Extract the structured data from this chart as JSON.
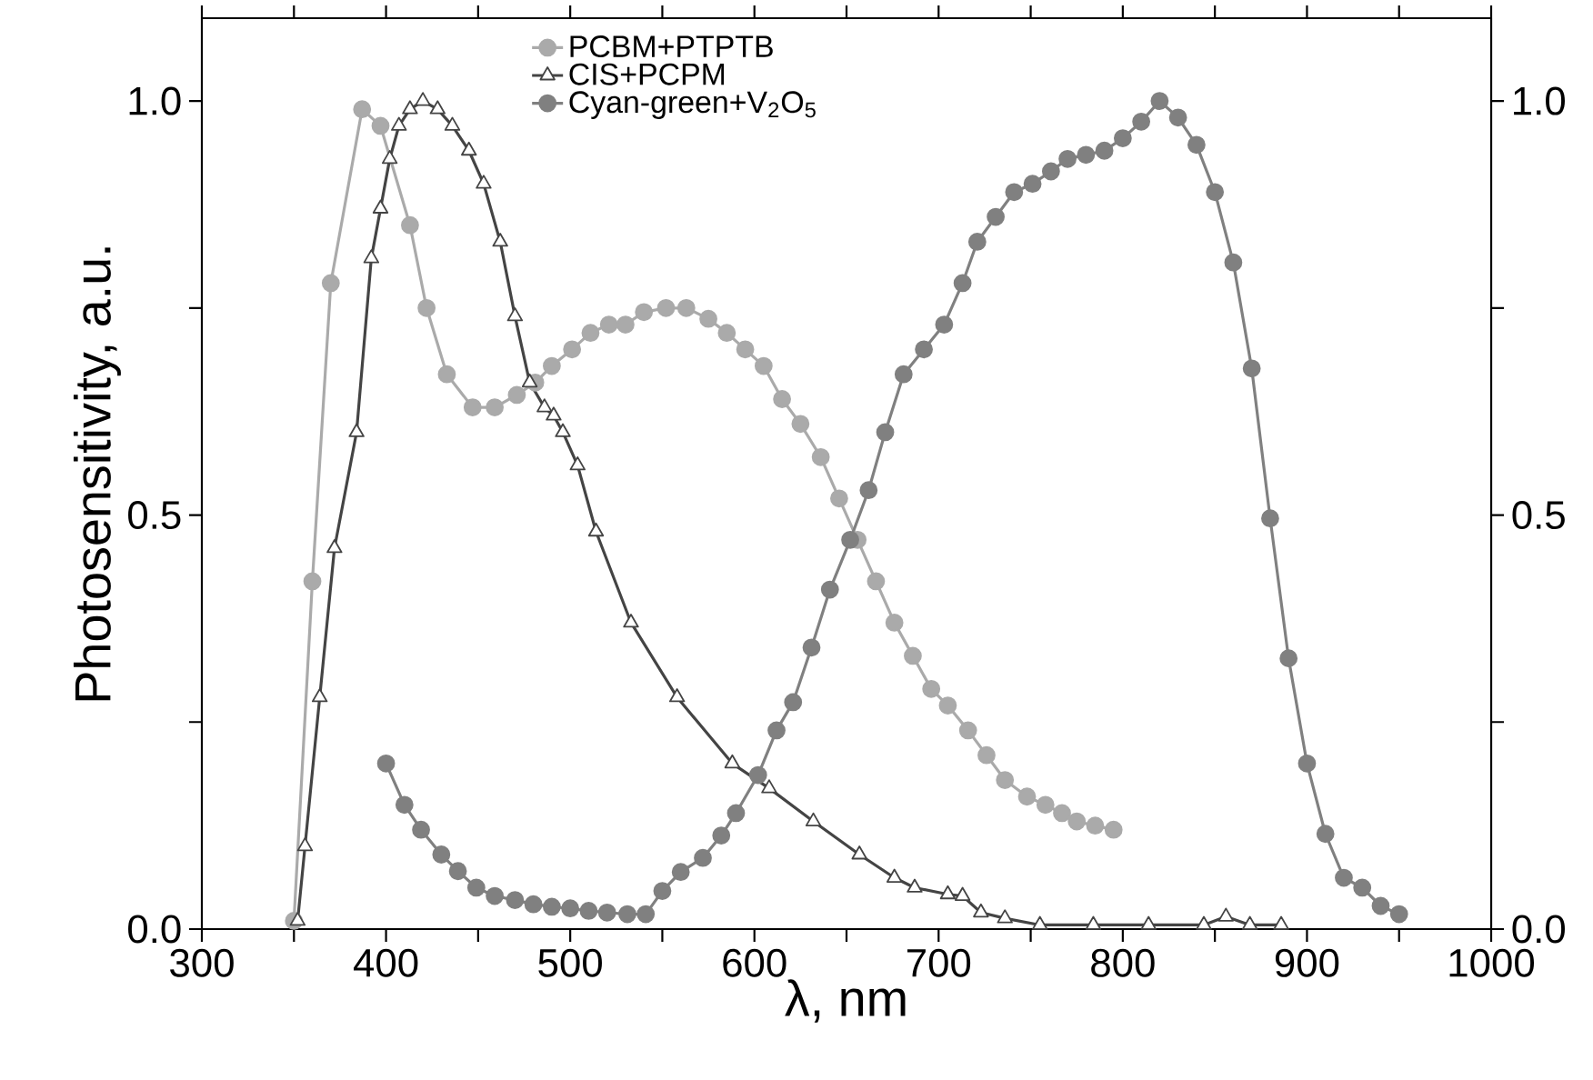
{
  "chart_data": {
    "type": "line",
    "xlabel": "λ, nm",
    "ylabel": "Photosensitivity, a.u.",
    "xlim": [
      300,
      1000
    ],
    "xticks": [
      300,
      {
        "value": 350,
        "label": null
      },
      400,
      {
        "value": 450,
        "label": null
      },
      500,
      {
        "value": 550,
        "label": null
      },
      600,
      {
        "value": 650,
        "label": null
      },
      700,
      {
        "value": 750,
        "label": null
      },
      800,
      {
        "value": 850,
        "label": null
      },
      900,
      {
        "value": 950,
        "label": null
      },
      1000
    ],
    "ylim": [
      0,
      1.1
    ],
    "yticks": [
      {
        "value": 0,
        "label": "0.0"
      },
      {
        "value": 0.25,
        "label": null
      },
      {
        "value": 0.5,
        "label": "0.5"
      },
      {
        "value": 0.75,
        "label": null
      },
      {
        "value": 1,
        "label": "1.0"
      }
    ],
    "y2lim": [
      0,
      1.1
    ],
    "y2ticks": [
      {
        "value": 0,
        "label": "0.0"
      },
      {
        "value": 0.25,
        "label": null
      },
      {
        "value": 0.5,
        "label": "0.5"
      },
      {
        "value": 0.75,
        "label": null
      },
      {
        "value": 1,
        "label": "1.0"
      }
    ],
    "legend": "top",
    "grid": false,
    "series": [
      {
        "name": "PCBM+PTPTB",
        "color": "#aaaaaa",
        "marker": "circle",
        "x": [
          350,
          360,
          370,
          387,
          397,
          413,
          422,
          433,
          447,
          459,
          471,
          481,
          490,
          501,
          511,
          521,
          530,
          540,
          552,
          563,
          575,
          585,
          595,
          605,
          615,
          625,
          636,
          646,
          656,
          666,
          676,
          686,
          696,
          705,
          716,
          726,
          736,
          748,
          758,
          767,
          775,
          785,
          795
        ],
        "values": [
          0.01,
          0.42,
          0.78,
          0.99,
          0.97,
          0.85,
          0.75,
          0.67,
          0.63,
          0.63,
          0.645,
          0.66,
          0.68,
          0.7,
          0.72,
          0.73,
          0.73,
          0.745,
          0.75,
          0.75,
          0.737,
          0.72,
          0.7,
          0.68,
          0.64,
          0.61,
          0.57,
          0.52,
          0.47,
          0.42,
          0.37,
          0.33,
          0.29,
          0.27,
          0.24,
          0.21,
          0.18,
          0.16,
          0.15,
          0.14,
          0.13,
          0.125,
          0.12
        ]
      },
      {
        "name": "CIS+PCPM",
        "color": "#444444",
        "marker": "triangle",
        "x": [
          352,
          356,
          364,
          372,
          384,
          392,
          397,
          402,
          407,
          413,
          420,
          428,
          436,
          445,
          453,
          462,
          470,
          478,
          486,
          491,
          496,
          504,
          514,
          533,
          558,
          588,
          608,
          632,
          657,
          676,
          687,
          705,
          713,
          723,
          736,
          755,
          784,
          814,
          844,
          856,
          869,
          886
        ],
        "values": [
          0.01,
          0.1,
          0.28,
          0.46,
          0.6,
          0.81,
          0.87,
          0.93,
          0.97,
          0.99,
          1.0,
          0.99,
          0.97,
          0.94,
          0.9,
          0.83,
          0.74,
          0.66,
          0.63,
          0.62,
          0.6,
          0.56,
          0.48,
          0.37,
          0.28,
          0.2,
          0.17,
          0.13,
          0.09,
          0.062,
          0.05,
          0.042,
          0.04,
          0.02,
          0.013,
          0.005,
          0.005,
          0.005,
          0.005,
          0.015,
          0.005,
          0.005
        ]
      },
      {
        "name": "Cyan-green+V$_{2}$O$_{5}$",
        "color": "#808080",
        "marker": "circle",
        "x": [
          400,
          410,
          419,
          430,
          439,
          449,
          459,
          470,
          480,
          490,
          500,
          510,
          520,
          531,
          541,
          550,
          560,
          572,
          582,
          590,
          602,
          612,
          621,
          631,
          641,
          652,
          662,
          671,
          681,
          692,
          703,
          713,
          721,
          731,
          741,
          751,
          761,
          770,
          780,
          790,
          800,
          810,
          820,
          830,
          840,
          850,
          860,
          870,
          880,
          890,
          900,
          910,
          920,
          930,
          940,
          950
        ],
        "values": [
          0.2,
          0.15,
          0.12,
          0.09,
          0.07,
          0.05,
          0.04,
          0.035,
          0.03,
          0.027,
          0.025,
          0.022,
          0.02,
          0.018,
          0.018,
          0.046,
          0.069,
          0.086,
          0.113,
          0.14,
          0.186,
          0.24,
          0.274,
          0.34,
          0.41,
          0.47,
          0.53,
          0.6,
          0.67,
          0.7,
          0.73,
          0.78,
          0.83,
          0.86,
          0.89,
          0.9,
          0.915,
          0.93,
          0.935,
          0.94,
          0.955,
          0.975,
          1.0,
          0.98,
          0.947,
          0.89,
          0.805,
          0.677,
          0.496,
          0.327,
          0.2,
          0.115,
          0.062,
          0.05,
          0.028,
          0.018
        ]
      }
    ]
  }
}
